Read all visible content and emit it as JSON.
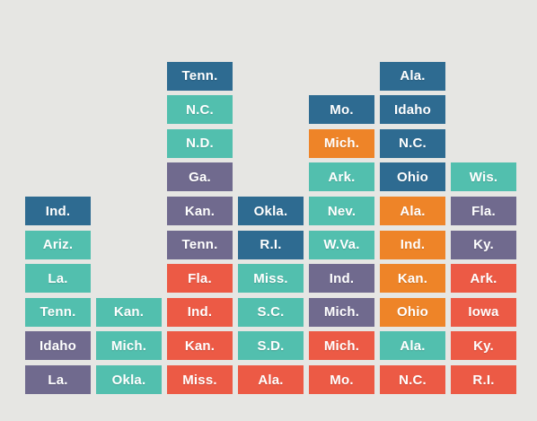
{
  "colors": {
    "background": "#e6e6e3",
    "dark_blue": "#2e6b91",
    "teal": "#52bfae",
    "purple": "#706a8e",
    "red": "#ec5a45",
    "orange": "#ee8428"
  },
  "chart_data": {
    "type": "stacked tile columns",
    "columns": [
      {
        "tiles": [
          {
            "label": "La.",
            "color": "purple"
          },
          {
            "label": "Idaho",
            "color": "purple"
          },
          {
            "label": "Tenn.",
            "color": "teal"
          },
          {
            "label": "La.",
            "color": "teal"
          },
          {
            "label": "Ariz.",
            "color": "teal"
          },
          {
            "label": "Ind.",
            "color": "dark_blue"
          }
        ]
      },
      {
        "tiles": [
          {
            "label": "Okla.",
            "color": "teal"
          },
          {
            "label": "Mich.",
            "color": "teal"
          },
          {
            "label": "Kan.",
            "color": "teal"
          }
        ]
      },
      {
        "tiles": [
          {
            "label": "Miss.",
            "color": "red"
          },
          {
            "label": "Kan.",
            "color": "red"
          },
          {
            "label": "Ind.",
            "color": "red"
          },
          {
            "label": "Fla.",
            "color": "red"
          },
          {
            "label": "Tenn.",
            "color": "purple"
          },
          {
            "label": "Kan.",
            "color": "purple"
          },
          {
            "label": "Ga.",
            "color": "purple"
          },
          {
            "label": "N.D.",
            "color": "teal"
          },
          {
            "label": "N.C.",
            "color": "teal"
          },
          {
            "label": "Tenn.",
            "color": "dark_blue"
          }
        ]
      },
      {
        "tiles": [
          {
            "label": "Ala.",
            "color": "red"
          },
          {
            "label": "S.D.",
            "color": "teal"
          },
          {
            "label": "S.C.",
            "color": "teal"
          },
          {
            "label": "Miss.",
            "color": "teal"
          },
          {
            "label": "R.I.",
            "color": "dark_blue"
          },
          {
            "label": "Okla.",
            "color": "dark_blue"
          }
        ]
      },
      {
        "tiles": [
          {
            "label": "Mo.",
            "color": "red"
          },
          {
            "label": "Mich.",
            "color": "red"
          },
          {
            "label": "Mich.",
            "color": "purple"
          },
          {
            "label": "Ind.",
            "color": "purple"
          },
          {
            "label": "W.Va.",
            "color": "teal"
          },
          {
            "label": "Nev.",
            "color": "teal"
          },
          {
            "label": "Ark.",
            "color": "teal"
          },
          {
            "label": "Mich.",
            "color": "orange"
          },
          {
            "label": "Mo.",
            "color": "dark_blue"
          }
        ]
      },
      {
        "tiles": [
          {
            "label": "N.C.",
            "color": "red"
          },
          {
            "label": "Ala.",
            "color": "teal"
          },
          {
            "label": "Ohio",
            "color": "orange"
          },
          {
            "label": "Kan.",
            "color": "orange"
          },
          {
            "label": "Ind.",
            "color": "orange"
          },
          {
            "label": "Ala.",
            "color": "orange"
          },
          {
            "label": "Ohio",
            "color": "dark_blue"
          },
          {
            "label": "N.C.",
            "color": "dark_blue"
          },
          {
            "label": "Idaho",
            "color": "dark_blue"
          },
          {
            "label": "Ala.",
            "color": "dark_blue"
          }
        ]
      },
      {
        "tiles": [
          {
            "label": "R.I.",
            "color": "red"
          },
          {
            "label": "Ky.",
            "color": "red"
          },
          {
            "label": "Iowa",
            "color": "red"
          },
          {
            "label": "Ark.",
            "color": "red"
          },
          {
            "label": "Ky.",
            "color": "purple"
          },
          {
            "label": "Fla.",
            "color": "purple"
          },
          {
            "label": "Wis.",
            "color": "teal"
          }
        ]
      }
    ]
  }
}
